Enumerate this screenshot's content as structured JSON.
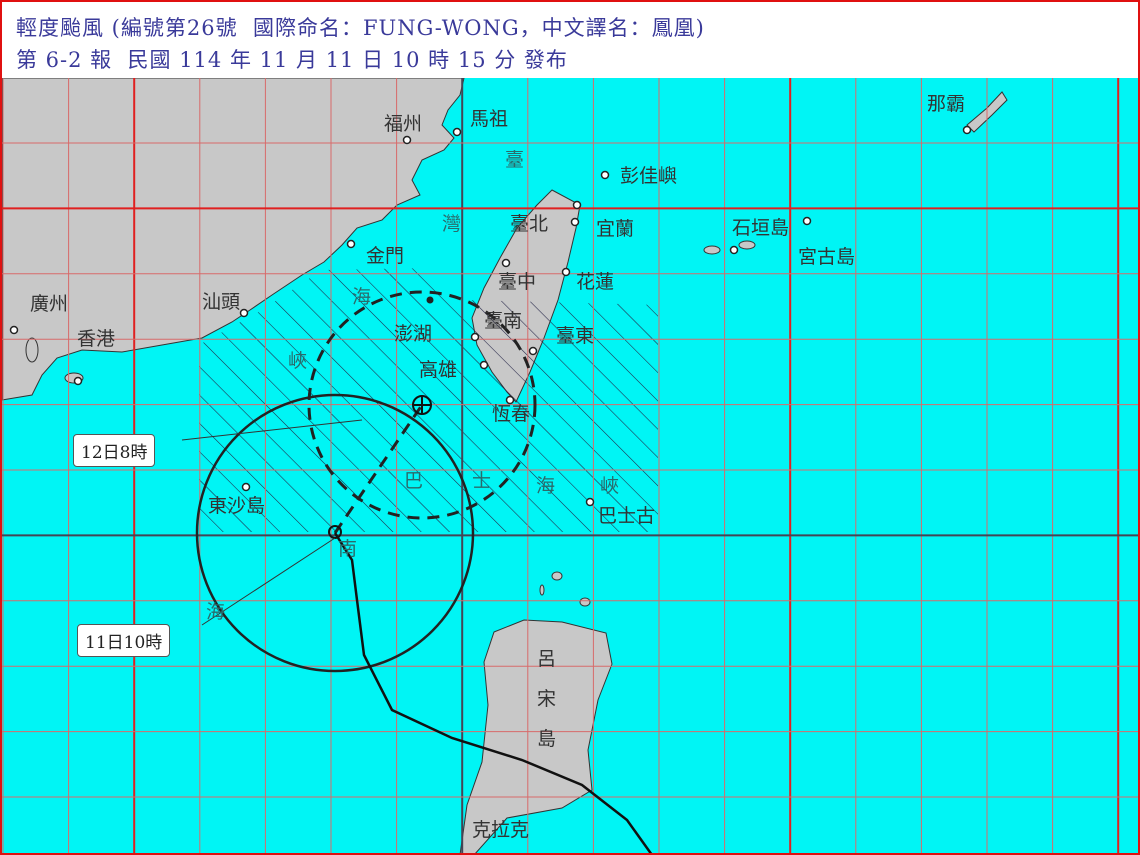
{
  "header": {
    "line1": "輕度颱風 (編號第26號  國際命名：FUNG-WONG，中文譯名：鳳凰)",
    "line2": "第 6-2 報  民國 114 年 11 月 11 日 10 時 15 分 發布"
  },
  "colors": {
    "sea": "#00f5f5",
    "land": "#c8c8c8",
    "grid": "#e05050",
    "border": "#e01010",
    "header_text": "#3a3a9a"
  },
  "forecast_labels": {
    "future": "12日8時",
    "current": "11日10時"
  },
  "places": {
    "fuzhou": "福州",
    "matsu": "馬祖",
    "pengjia": "彭佳嶼",
    "taipei": "臺北",
    "yilan": "宜蘭",
    "kinmen": "金門",
    "taichung": "臺中",
    "hualien": "花蓮",
    "guangzhou": "廣州",
    "hongkong": "香港",
    "shantou": "汕頭",
    "penghu": "澎湖",
    "tainan": "臺南",
    "taitung": "臺東",
    "kaohsiung": "高雄",
    "hengchun": "恆春",
    "dongsha": "東沙島",
    "basco": "巴士古",
    "ishigaki": "石垣島",
    "miyako": "宮古島",
    "naha": "那霸",
    "clark": "克拉克"
  },
  "regions": {
    "strait_1": "臺",
    "strait_2": "灣",
    "strait_3": "海",
    "strait_4": "峽",
    "bashi_1": "巴",
    "bashi_2": "士",
    "bashi_3": "海",
    "bashi_4": "峽",
    "scs_1": "南",
    "scs_2": "海",
    "luzon_1": "呂",
    "luzon_2": "宋",
    "luzon_3": "島"
  }
}
